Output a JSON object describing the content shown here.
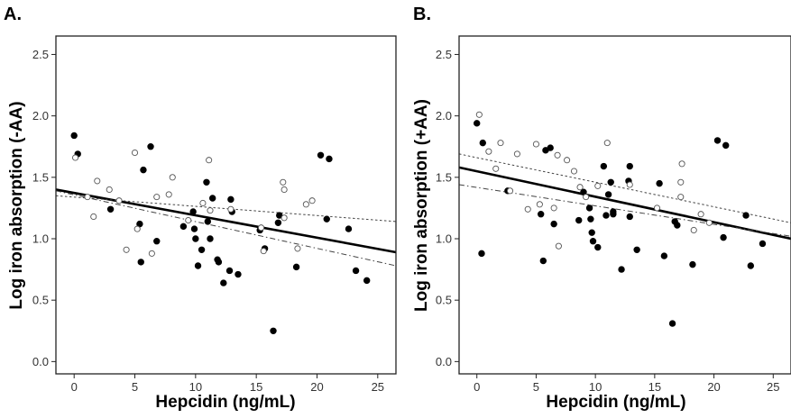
{
  "chart_data": [
    {
      "panel": "A.",
      "type": "scatter",
      "xlabel": "Hepcidin (ng/mL)",
      "ylabel": "Log iron absorption (-AA)",
      "xlim": [
        -1.5,
        26.5
      ],
      "ylim": [
        -0.1,
        2.65
      ],
      "xticks": [
        0,
        5,
        10,
        15,
        20,
        25
      ],
      "yticks": [
        "0.0",
        "0.5",
        "1.0",
        "1.5",
        "2.0",
        "2.5"
      ],
      "grid": false,
      "series": [
        {
          "marker": "filled-circle",
          "points": [
            [
              0.0,
              1.84
            ],
            [
              0.3,
              1.69
            ],
            [
              3.0,
              1.24
            ],
            [
              5.4,
              1.12
            ],
            [
              5.7,
              1.56
            ],
            [
              6.3,
              1.75
            ],
            [
              5.5,
              0.81
            ],
            [
              6.8,
              0.98
            ],
            [
              9.0,
              1.1
            ],
            [
              9.8,
              1.22
            ],
            [
              9.9,
              1.08
            ],
            [
              10.2,
              0.78
            ],
            [
              10.0,
              1.0
            ],
            [
              10.5,
              0.91
            ],
            [
              11.0,
              1.14
            ],
            [
              11.4,
              1.33
            ],
            [
              11.2,
              1.0
            ],
            [
              11.8,
              0.83
            ],
            [
              11.9,
              0.81
            ],
            [
              12.3,
              0.64
            ],
            [
              12.8,
              0.74
            ],
            [
              13.0,
              1.22
            ],
            [
              12.9,
              1.32
            ],
            [
              13.5,
              0.71
            ],
            [
              15.3,
              1.07
            ],
            [
              15.7,
              0.92
            ],
            [
              16.4,
              0.25
            ],
            [
              16.8,
              1.13
            ],
            [
              16.9,
              1.19
            ],
            [
              18.3,
              0.77
            ],
            [
              20.3,
              1.68
            ],
            [
              21.0,
              1.65
            ],
            [
              20.8,
              1.16
            ],
            [
              22.6,
              1.08
            ],
            [
              23.2,
              0.74
            ],
            [
              24.1,
              0.66
            ],
            [
              10.9,
              1.46
            ]
          ]
        },
        {
          "marker": "open-circle",
          "points": [
            [
              0.1,
              1.66
            ],
            [
              1.1,
              1.34
            ],
            [
              1.6,
              1.18
            ],
            [
              1.9,
              1.47
            ],
            [
              2.9,
              1.4
            ],
            [
              3.7,
              1.31
            ],
            [
              4.3,
              0.91
            ],
            [
              5.0,
              1.7
            ],
            [
              5.2,
              1.08
            ],
            [
              6.4,
              0.88
            ],
            [
              6.8,
              1.34
            ],
            [
              7.8,
              1.36
            ],
            [
              8.1,
              1.5
            ],
            [
              9.4,
              1.15
            ],
            [
              10.6,
              1.29
            ],
            [
              11.1,
              1.64
            ],
            [
              11.2,
              1.23
            ],
            [
              12.9,
              1.24
            ],
            [
              15.6,
              0.9
            ],
            [
              15.4,
              1.09
            ],
            [
              17.3,
              1.4
            ],
            [
              17.2,
              1.46
            ],
            [
              17.3,
              1.17
            ],
            [
              18.4,
              0.92
            ],
            [
              19.1,
              1.28
            ],
            [
              19.6,
              1.31
            ]
          ]
        }
      ],
      "fit_lines": [
        {
          "style": "solid",
          "x": [
            -1.5,
            26.5
          ],
          "y": [
            1.4,
            0.89
          ]
        },
        {
          "style": "dotted",
          "x": [
            -1.5,
            26.5
          ],
          "y": [
            1.35,
            1.14
          ]
        },
        {
          "style": "dash-dot",
          "x": [
            -1.5,
            26.5
          ],
          "y": [
            1.39,
            0.78
          ]
        }
      ]
    },
    {
      "panel": "B.",
      "type": "scatter",
      "xlabel": "Hepcidin (ng/mL)",
      "ylabel": "Log iron absorption (+AA)",
      "xlim": [
        -1.5,
        26.5
      ],
      "ylim": [
        -0.1,
        2.65
      ],
      "xticks": [
        0,
        5,
        10,
        15,
        20,
        25
      ],
      "yticks": [
        "0.0",
        "0.5",
        "1.0",
        "1.5",
        "2.0",
        "2.5"
      ],
      "grid": false,
      "series": [
        {
          "marker": "filled-circle",
          "points": [
            [
              0.0,
              1.94
            ],
            [
              0.5,
              1.78
            ],
            [
              0.4,
              0.88
            ],
            [
              2.6,
              1.39
            ],
            [
              5.4,
              1.2
            ],
            [
              5.6,
              0.82
            ],
            [
              5.8,
              1.72
            ],
            [
              6.2,
              1.74
            ],
            [
              6.5,
              1.12
            ],
            [
              8.6,
              1.15
            ],
            [
              9.0,
              1.38
            ],
            [
              9.5,
              1.25
            ],
            [
              9.6,
              1.16
            ],
            [
              9.7,
              1.05
            ],
            [
              9.8,
              0.98
            ],
            [
              10.2,
              0.93
            ],
            [
              10.7,
              1.59
            ],
            [
              10.9,
              1.19
            ],
            [
              11.1,
              1.36
            ],
            [
              11.3,
              1.46
            ],
            [
              11.5,
              1.22
            ],
            [
              11.5,
              1.2
            ],
            [
              12.2,
              0.75
            ],
            [
              12.9,
              1.18
            ],
            [
              12.9,
              1.59
            ],
            [
              12.8,
              1.47
            ],
            [
              13.5,
              0.91
            ],
            [
              15.4,
              1.45
            ],
            [
              15.8,
              0.86
            ],
            [
              16.5,
              0.31
            ],
            [
              16.9,
              1.11
            ],
            [
              16.7,
              1.14
            ],
            [
              18.2,
              0.79
            ],
            [
              20.3,
              1.8
            ],
            [
              21.0,
              1.76
            ],
            [
              20.8,
              1.01
            ],
            [
              22.7,
              1.19
            ],
            [
              23.1,
              0.78
            ],
            [
              24.1,
              0.96
            ]
          ]
        },
        {
          "marker": "open-circle",
          "points": [
            [
              0.2,
              2.01
            ],
            [
              1.0,
              1.71
            ],
            [
              1.6,
              1.57
            ],
            [
              2.0,
              1.78
            ],
            [
              2.8,
              1.39
            ],
            [
              3.4,
              1.69
            ],
            [
              4.3,
              1.24
            ],
            [
              5.0,
              1.77
            ],
            [
              5.3,
              1.28
            ],
            [
              6.5,
              1.25
            ],
            [
              6.8,
              1.68
            ],
            [
              6.9,
              0.94
            ],
            [
              7.6,
              1.64
            ],
            [
              8.2,
              1.55
            ],
            [
              8.7,
              1.42
            ],
            [
              9.2,
              1.34
            ],
            [
              10.2,
              1.43
            ],
            [
              11.0,
              1.78
            ],
            [
              12.9,
              1.44
            ],
            [
              15.2,
              1.25
            ],
            [
              17.3,
              1.61
            ],
            [
              17.2,
              1.46
            ],
            [
              17.2,
              1.34
            ],
            [
              18.3,
              1.07
            ],
            [
              18.9,
              1.2
            ],
            [
              19.6,
              1.13
            ]
          ]
        }
      ],
      "fit_lines": [
        {
          "style": "solid",
          "x": [
            -1.5,
            26.5
          ],
          "y": [
            1.58,
            1.0
          ]
        },
        {
          "style": "dotted",
          "x": [
            -1.5,
            26.5
          ],
          "y": [
            1.69,
            1.13
          ]
        },
        {
          "style": "dash-dot",
          "x": [
            -1.5,
            26.5
          ],
          "y": [
            1.44,
            1.02
          ]
        }
      ]
    }
  ]
}
